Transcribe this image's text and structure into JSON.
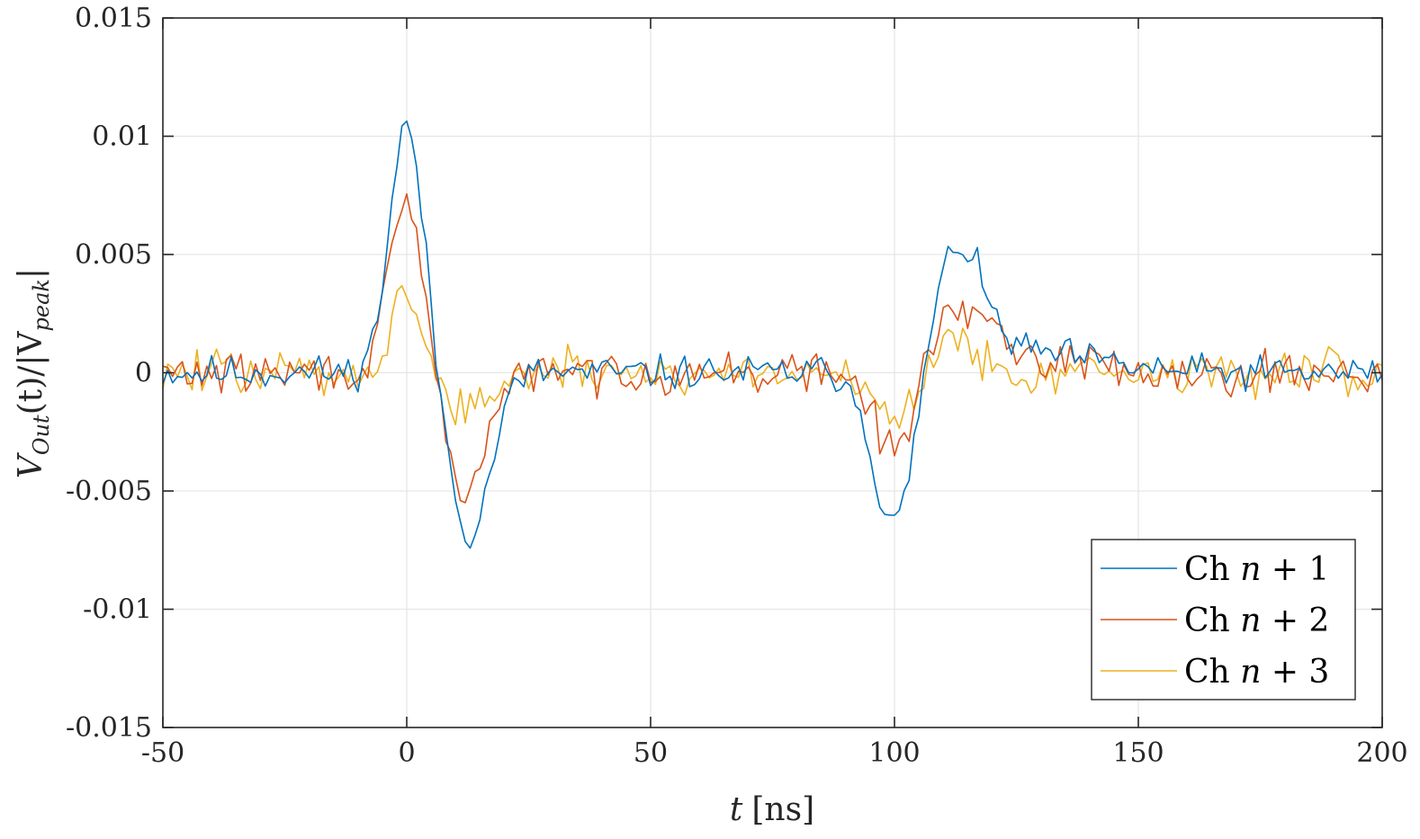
{
  "chart_data": {
    "type": "line",
    "xlabel": {
      "var": "t",
      "unit": "[ns]"
    },
    "ylabel": {
      "main": "V",
      "main_sub": "Out",
      "arg": "(t)/|V",
      "den_sub": "peak",
      "close": "|"
    },
    "xlim": [
      -50,
      200
    ],
    "ylim": [
      -0.015,
      0.015
    ],
    "x_ticks": [
      -50,
      0,
      50,
      100,
      150,
      200
    ],
    "x_tick_labels": [
      "-50",
      "0",
      "50",
      "100",
      "150",
      "200"
    ],
    "y_ticks": [
      -0.015,
      -0.01,
      -0.005,
      0,
      0.005,
      0.01,
      0.015
    ],
    "y_tick_labels": [
      "-0.015",
      "-0.01",
      "-0.005",
      "0",
      "0.005",
      "0.01",
      "0.015"
    ],
    "grid": true,
    "legend_position": "bottom-right",
    "sample_step_ns": 1,
    "series": [
      {
        "name": "Ch n + 1",
        "label_prefix": "Ch ",
        "label_var": "n",
        "label_suffix": " + 1",
        "color": "#0072BD",
        "noise": 0.0006,
        "seed": 11,
        "features": [
          {
            "t0": 0,
            "width": 3.5,
            "amp": 0.0105
          },
          {
            "t0": 13,
            "width": 4.2,
            "amp": -0.0068
          },
          {
            "t0": 100,
            "width": 4.2,
            "amp": -0.0068
          },
          {
            "t0": 113,
            "width": 5.0,
            "amp": 0.0048
          },
          {
            "t0": 125,
            "width": 15,
            "amp": 0.0009
          }
        ]
      },
      {
        "name": "Ch n + 2",
        "label_prefix": "Ch ",
        "label_var": "n",
        "label_suffix": " + 2",
        "color": "#D95319",
        "noise": 0.0007,
        "seed": 29,
        "features": [
          {
            "t0": 0,
            "width": 3.5,
            "amp": 0.0071
          },
          {
            "t0": 12,
            "width": 4.2,
            "amp": -0.005
          },
          {
            "t0": 100,
            "width": 4.2,
            "amp": -0.0035
          },
          {
            "t0": 113,
            "width": 5.0,
            "amp": 0.0025
          },
          {
            "t0": 125,
            "width": 15,
            "amp": 0.0007
          }
        ]
      },
      {
        "name": "Ch n + 3",
        "label_prefix": "Ch ",
        "label_var": "n",
        "label_suffix": " + 3",
        "color": "#EDB120",
        "noise": 0.0008,
        "seed": 47,
        "features": [
          {
            "t0": 0,
            "width": 3.5,
            "amp": 0.0032
          },
          {
            "t0": 12,
            "width": 4.5,
            "amp": -0.0017
          },
          {
            "t0": 100,
            "width": 4.5,
            "amp": -0.0017
          },
          {
            "t0": 113,
            "width": 5.0,
            "amp": 0.0013
          }
        ]
      }
    ]
  }
}
